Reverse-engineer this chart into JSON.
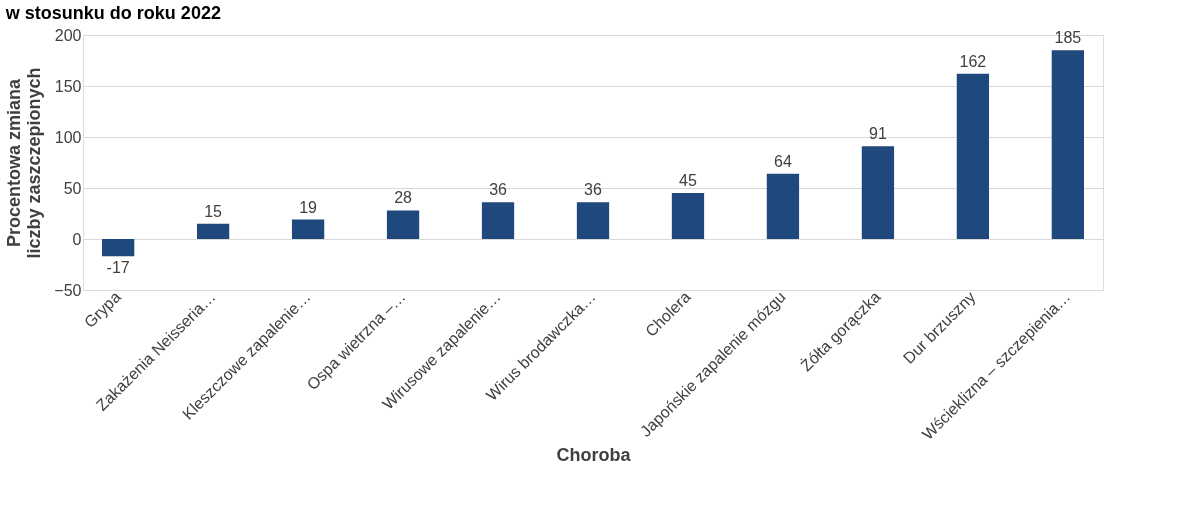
{
  "chart_data": {
    "type": "bar",
    "title": "w stosunku do roku 2022",
    "xlabel": "Choroba",
    "ylabel": "Procentowa zmiana liczby zaszczepionych",
    "categories": [
      "Grypa",
      "Zakażenia Neisseria…",
      "Kleszczowe zapalenie…",
      "Ospa wietrzna –…",
      "Wirusowe zapalenie…",
      "Wirus brodawczka…",
      "Cholera",
      "Japońskie zapalenie mózgu",
      "Żółta gorączka",
      "Dur brzuszny",
      "Wścieklizna – szczepienia…"
    ],
    "values": [
      -17,
      15,
      19,
      28,
      36,
      36,
      45,
      64,
      91,
      162,
      185
    ],
    "color": "#1f497d",
    "ylim": [
      -50,
      200
    ],
    "yticks": [
      -50,
      0,
      50,
      100,
      150,
      200
    ],
    "grid": "y",
    "data_labels": true
  }
}
